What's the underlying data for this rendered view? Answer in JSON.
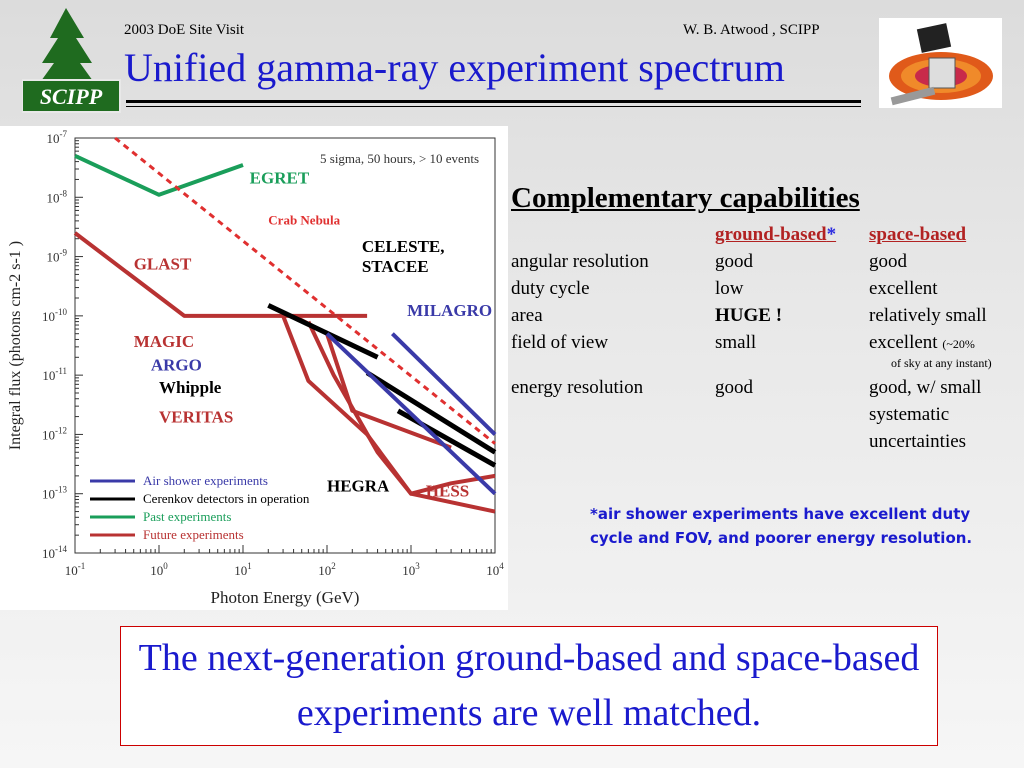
{
  "header": {
    "left": "2003 DoE Site Visit",
    "right": "W. B. Atwood , SCIPP",
    "title": "Unified gamma-ray experiment spectrum"
  },
  "logo": {
    "text": "SCIPP",
    "colors": {
      "tree": "#1f6b1f",
      "badge": "#1f6b1f"
    }
  },
  "capabilities": {
    "heading": "Complementary capabilities",
    "col_ground": "ground-based",
    "star": "*",
    "col_space": "space-based",
    "rows": [
      {
        "label": "angular resolution",
        "ground": "good",
        "space": "good"
      },
      {
        "label": "duty cycle",
        "ground": "low",
        "space": "excellent"
      },
      {
        "label": "area",
        "ground": "HUGE !",
        "space": "relatively small"
      },
      {
        "label": "field of view",
        "ground": "small",
        "space": "excellent",
        "space_note1": "(~20%",
        "space_note2": "of sky at any instant)"
      },
      {
        "label": "energy resolution",
        "ground": "good",
        "space": "good, w/ small",
        "space2": "systematic",
        "space3": "uncertainties"
      }
    ]
  },
  "note": "*air shower experiments have excellent duty cycle and FOV, and poorer energy resolution.",
  "callout": "The next-generation ground-based and space-based experiments are well matched.",
  "chart_data": {
    "type": "line",
    "xlabel": "Photon Energy (GeV)",
    "ylabel": "Integral flux (photons cm-2 s-1 )",
    "annotation": "5 sigma, 50 hours,  > 10 events",
    "xscale": "log",
    "yscale": "log",
    "xlim": [
      0.1,
      10000
    ],
    "ylim": [
      1e-14,
      1e-07
    ],
    "x_tick_labels": [
      "10-1",
      "100",
      "101",
      "102",
      "103",
      "104"
    ],
    "y_tick_labels": [
      "10-7",
      "10-8",
      "10-9",
      "10-10",
      "10-11",
      "10-12",
      "10-13",
      "10-14"
    ],
    "colors": {
      "air": "#3a3aa8",
      "cerenkov": "#000000",
      "past": "#1a9e5a",
      "future": "#b83232",
      "crab": "#e03030"
    },
    "legend": [
      {
        "label": "Air shower experiments",
        "kind": "air"
      },
      {
        "label": "Cerenkov detectors in operation",
        "kind": "cerenkov"
      },
      {
        "label": "Past experiments",
        "kind": "past"
      },
      {
        "label": "Future experiments",
        "kind": "future"
      }
    ],
    "series": [
      {
        "name": "EGRET",
        "kind": "past",
        "x": [
          0.1,
          1,
          10
        ],
        "y": [
          5e-08,
          1.1e-08,
          3.5e-08
        ]
      },
      {
        "name": "GLAST",
        "kind": "future",
        "x": [
          0.1,
          2,
          300
        ],
        "y": [
          2.5e-09,
          1e-10,
          1e-10
        ]
      },
      {
        "name": "MAGIC",
        "kind": "future",
        "x": [
          30,
          60,
          300,
          1000,
          10000
        ],
        "y": [
          1e-10,
          8e-12,
          1e-12,
          1e-13,
          5e-14
        ]
      },
      {
        "name": "VERITAS",
        "kind": "future",
        "x": [
          60,
          120,
          400,
          1000,
          3000,
          10000
        ],
        "y": [
          8e-11,
          1e-11,
          5e-13,
          1e-13,
          1.5e-13,
          2e-13
        ]
      },
      {
        "name": "HESS",
        "kind": "future",
        "x": [
          40,
          100,
          200,
          3000
        ],
        "y": [
          1e-10,
          5e-11,
          2.5e-12,
          6e-13
        ]
      },
      {
        "name": "Whipple",
        "kind": "cerenkov",
        "x": [
          300,
          10000
        ],
        "y": [
          1.1e-11,
          5e-13
        ]
      },
      {
        "name": "CELESTE, STACEE",
        "kind": "cerenkov",
        "x": [
          20,
          400
        ],
        "y": [
          1.5e-10,
          2e-11
        ]
      },
      {
        "name": "HEGRA",
        "kind": "cerenkov",
        "x": [
          700,
          10000
        ],
        "y": [
          2.5e-12,
          3e-13
        ]
      },
      {
        "name": "MILAGRO",
        "kind": "air",
        "x": [
          600,
          10000
        ],
        "y": [
          5e-11,
          1e-12
        ]
      },
      {
        "name": "ARGO",
        "kind": "air",
        "x": [
          100,
          10000
        ],
        "y": [
          5e-11,
          1e-13
        ]
      },
      {
        "name": "Crab Nebula",
        "kind": "crab",
        "x": [
          0.3,
          10000
        ],
        "y": [
          1e-07,
          7e-13
        ]
      }
    ],
    "labels": [
      {
        "text": "EGRET",
        "x": 12,
        "y": 1.7e-08,
        "kind": "past"
      },
      {
        "text": "Crab  Nebula",
        "x": 20,
        "y": 3.5e-09,
        "kind": "crab",
        "small": true
      },
      {
        "text": "GLAST",
        "x": 0.5,
        "y": 6e-10,
        "kind": "future"
      },
      {
        "text": "CELESTE,",
        "x": 260,
        "y": 1.2e-09,
        "kind": "cerenkov"
      },
      {
        "text": "STACEE",
        "x": 260,
        "y": 5.5e-10,
        "kind": "cerenkov"
      },
      {
        "text": "MILAGRO",
        "x": 900,
        "y": 1e-10,
        "kind": "air"
      },
      {
        "text": "MAGIC",
        "x": 0.5,
        "y": 3e-11,
        "kind": "future"
      },
      {
        "text": "ARGO",
        "x": 0.8,
        "y": 1.2e-11,
        "kind": "air"
      },
      {
        "text": "Whipple",
        "x": 1.0,
        "y": 5e-12,
        "kind": "cerenkov"
      },
      {
        "text": "VERITAS",
        "x": 1.0,
        "y": 1.6e-12,
        "kind": "future"
      },
      {
        "text": "HEGRA",
        "x": 100,
        "y": 1.1e-13,
        "kind": "cerenkov"
      },
      {
        "text": "HESS",
        "x": 1500,
        "y": 9e-14,
        "kind": "future"
      }
    ]
  }
}
